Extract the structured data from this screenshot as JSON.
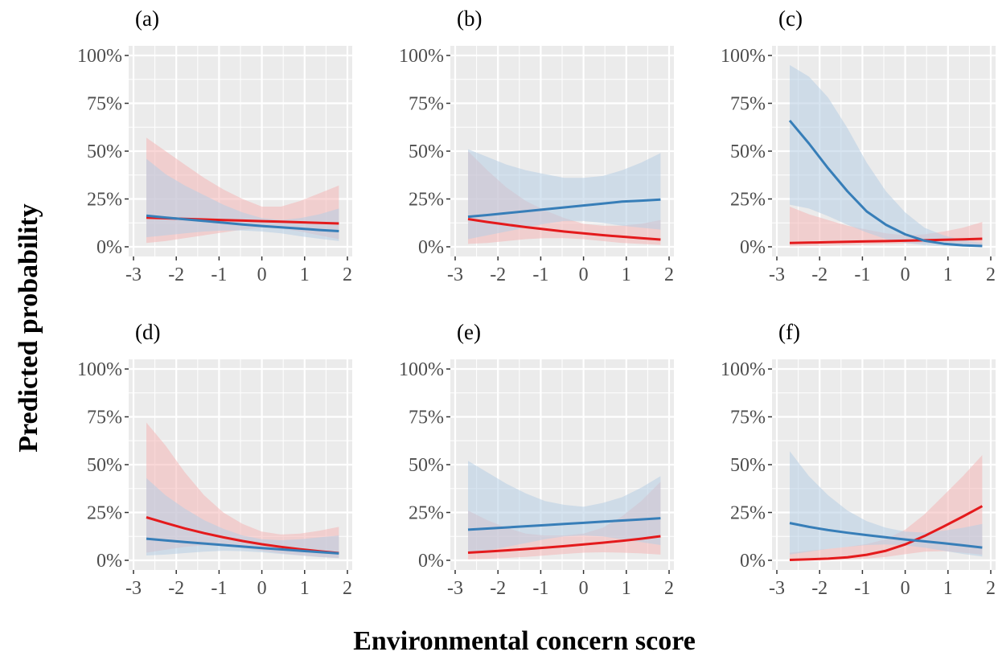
{
  "figure": {
    "ylabel": "Predicted probability",
    "xlabel": "Environmental concern score"
  },
  "colors": {
    "panel_bg": "#ebebeb",
    "grid": "#ffffff",
    "red": "#e41a1c",
    "blue": "#377eb8",
    "red_band": "#f4b6b6",
    "blue_band": "#b7cde3",
    "tick_text": "#4d4d4d"
  },
  "chart_data": [
    {
      "type": "line",
      "tag": "(a)",
      "xlim": [
        -3,
        2
      ],
      "ylim": [
        0,
        100
      ],
      "xticks": [
        "-3",
        "-2",
        "-1",
        "0",
        "1",
        "2"
      ],
      "yticks": [
        "0%",
        "25%",
        "50%",
        "75%",
        "100%"
      ],
      "x": [
        -2.7,
        -2.25,
        -1.8,
        -1.35,
        -0.9,
        -0.45,
        0,
        0.45,
        0.9,
        1.35,
        1.8
      ],
      "series": [
        {
          "color": "red",
          "values": [
            15.2,
            14.9,
            14.6,
            14.3,
            14.0,
            13.7,
            13.4,
            13.1,
            12.8,
            12.5,
            12.2
          ],
          "lower": [
            2.0,
            3.0,
            4.5,
            6.0,
            7.5,
            9.0,
            10.0,
            9.5,
            8.0,
            6.0,
            4.0
          ],
          "upper": [
            57,
            50,
            43,
            36,
            30,
            25,
            21,
            21,
            24,
            28,
            32
          ]
        },
        {
          "color": "blue",
          "values": [
            16.3,
            15.3,
            14.4,
            13.5,
            12.6,
            11.7,
            10.9,
            10.2,
            9.5,
            8.8,
            8.2
          ],
          "lower": [
            5.0,
            6.0,
            7.0,
            8.0,
            8.5,
            8.5,
            8.0,
            7.0,
            5.5,
            4.2,
            3.0
          ],
          "upper": [
            46,
            38,
            32,
            27,
            22,
            18,
            15,
            14,
            15,
            17,
            20
          ]
        }
      ]
    },
    {
      "type": "line",
      "tag": "(b)",
      "xlim": [
        -3,
        2
      ],
      "ylim": [
        0,
        100
      ],
      "xticks": [
        "-3",
        "-2",
        "-1",
        "0",
        "1",
        "2"
      ],
      "yticks": [
        "0%",
        "25%",
        "50%",
        "75%",
        "100%"
      ],
      "x": [
        -2.7,
        -2.25,
        -1.8,
        -1.35,
        -0.9,
        -0.45,
        0,
        0.45,
        0.9,
        1.35,
        1.8
      ],
      "series": [
        {
          "color": "red",
          "values": [
            14.5,
            13.0,
            11.6,
            10.3,
            9.1,
            8.0,
            7.0,
            6.1,
            5.3,
            4.5,
            3.8
          ],
          "lower": [
            1.5,
            2.0,
            3.0,
            4.0,
            4.5,
            4.5,
            4.0,
            3.0,
            2.0,
            1.5,
            1.0
          ],
          "upper": [
            50,
            40,
            31,
            24,
            19,
            15,
            12,
            11,
            11,
            12,
            14
          ]
        },
        {
          "color": "blue",
          "values": [
            15.7,
            16.6,
            17.6,
            18.6,
            19.6,
            20.6,
            21.6,
            22.6,
            23.6,
            24.1,
            24.7
          ],
          "lower": [
            4.0,
            6.0,
            8.0,
            10.0,
            12.0,
            13.5,
            13.5,
            12.5,
            11.0,
            10.0,
            9.0
          ],
          "upper": [
            51,
            47,
            43,
            40,
            38,
            36,
            36,
            37,
            40,
            44,
            49
          ]
        }
      ]
    },
    {
      "type": "line",
      "tag": "(c)",
      "xlim": [
        -3,
        2
      ],
      "ylim": [
        0,
        100
      ],
      "xticks": [
        "-3",
        "-2",
        "-1",
        "0",
        "1",
        "2"
      ],
      "yticks": [
        "0%",
        "25%",
        "50%",
        "75%",
        "100%"
      ],
      "x": [
        -2.7,
        -2.25,
        -1.8,
        -1.35,
        -0.9,
        -0.45,
        0,
        0.45,
        0.9,
        1.35,
        1.8
      ],
      "series": [
        {
          "color": "red",
          "values": [
            2.0,
            2.2,
            2.4,
            2.6,
            2.8,
            3.0,
            3.2,
            3.4,
            3.7,
            3.9,
            4.2
          ],
          "lower": [
            0.2,
            0.4,
            0.6,
            0.9,
            1.2,
            1.5,
            1.8,
            1.8,
            1.6,
            1.3,
            1.0
          ],
          "upper": [
            21,
            17,
            14,
            11,
            9,
            7,
            6,
            6.5,
            8,
            10,
            13
          ]
        },
        {
          "color": "blue",
          "values": [
            66,
            54,
            41,
            29,
            18.5,
            11.5,
            6.5,
            3.2,
            1.6,
            0.8,
            0.4
          ],
          "lower": [
            22,
            20,
            16,
            11.5,
            7.5,
            4.0,
            2.0,
            0.8,
            0.3,
            0.1,
            0.05
          ],
          "upper": [
            95,
            89,
            78,
            62,
            44,
            29,
            18,
            10,
            6,
            3.5,
            2
          ]
        }
      ]
    },
    {
      "type": "line",
      "tag": "(d)",
      "xlim": [
        -3,
        2
      ],
      "ylim": [
        0,
        100
      ],
      "xticks": [
        "-3",
        "-2",
        "-1",
        "0",
        "1",
        "2"
      ],
      "yticks": [
        "0%",
        "25%",
        "50%",
        "75%",
        "100%"
      ],
      "x": [
        -2.7,
        -2.25,
        -1.8,
        -1.35,
        -0.9,
        -0.45,
        0,
        0.45,
        0.9,
        1.35,
        1.8
      ],
      "series": [
        {
          "color": "red",
          "values": [
            22.5,
            19.5,
            16.7,
            14.2,
            12.0,
            10.1,
            8.4,
            7.0,
            5.8,
            4.7,
            3.8
          ],
          "lower": [
            4.0,
            5.5,
            7.0,
            7.8,
            7.5,
            6.5,
            5.0,
            3.7,
            2.6,
            1.8,
            1.2
          ],
          "upper": [
            72,
            60,
            46,
            34,
            25,
            19,
            15,
            13.5,
            14,
            15.5,
            17.5
          ]
        },
        {
          "color": "blue",
          "values": [
            11.3,
            10.4,
            9.6,
            8.8,
            8.0,
            7.2,
            6.4,
            5.7,
            5.0,
            4.3,
            3.6
          ],
          "lower": [
            2.5,
            3.0,
            3.8,
            4.5,
            5.0,
            4.8,
            4.2,
            3.3,
            2.5,
            1.7,
            1.1
          ],
          "upper": [
            43,
            34,
            27,
            21,
            16.5,
            13,
            11,
            10.5,
            11,
            12,
            13
          ]
        }
      ]
    },
    {
      "type": "line",
      "tag": "(e)",
      "xlim": [
        -3,
        2
      ],
      "ylim": [
        0,
        100
      ],
      "xticks": [
        "-3",
        "-2",
        "-1",
        "0",
        "1",
        "2"
      ],
      "yticks": [
        "0%",
        "25%",
        "50%",
        "75%",
        "100%"
      ],
      "x": [
        -2.7,
        -2.25,
        -1.8,
        -1.35,
        -0.9,
        -0.45,
        0,
        0.45,
        0.9,
        1.35,
        1.8
      ],
      "series": [
        {
          "color": "red",
          "values": [
            4.0,
            4.6,
            5.2,
            5.9,
            6.6,
            7.4,
            8.3,
            9.2,
            10.2,
            11.3,
            12.6
          ],
          "lower": [
            0.5,
            0.8,
            1.2,
            1.8,
            2.5,
            3.3,
            4.0,
            4.2,
            4.0,
            3.6,
            3.0
          ],
          "upper": [
            26,
            21,
            17,
            14,
            13,
            13,
            14,
            17,
            23,
            31,
            41
          ]
        },
        {
          "color": "blue",
          "values": [
            16.0,
            16.6,
            17.2,
            17.8,
            18.4,
            19.0,
            19.6,
            20.2,
            20.8,
            21.4,
            22.0
          ],
          "lower": [
            3.5,
            5.0,
            7.0,
            9.0,
            11.0,
            12.5,
            13.0,
            12.5,
            11.0,
            9.5,
            8.0
          ],
          "upper": [
            52,
            46,
            40,
            35,
            31,
            29,
            28,
            30,
            33,
            38,
            44
          ]
        }
      ]
    },
    {
      "type": "line",
      "tag": "(f)",
      "xlim": [
        -3,
        2
      ],
      "ylim": [
        0,
        100
      ],
      "xticks": [
        "-3",
        "-2",
        "-1",
        "0",
        "1",
        "2"
      ],
      "yticks": [
        "0%",
        "25%",
        "50%",
        "75%",
        "100%"
      ],
      "x": [
        -2.7,
        -2.25,
        -1.8,
        -1.35,
        -0.9,
        -0.45,
        0,
        0.45,
        0.9,
        1.35,
        1.8
      ],
      "series": [
        {
          "color": "red",
          "values": [
            0.2,
            0.5,
            0.9,
            1.6,
            2.9,
            5.0,
            8.3,
            12.7,
            17.7,
            22.9,
            28.3
          ],
          "lower": [
            0.0,
            0.1,
            0.2,
            0.4,
            0.9,
            1.8,
            3.2,
            4.5,
            4.8,
            4.0,
            3.0
          ],
          "upper": [
            4,
            5,
            6,
            7,
            8.5,
            11,
            16,
            24,
            34,
            44,
            55
          ]
        },
        {
          "color": "blue",
          "values": [
            19.5,
            17.5,
            15.8,
            14.4,
            13.2,
            12.0,
            10.9,
            9.9,
            8.9,
            7.8,
            6.7
          ],
          "lower": [
            3.0,
            4.5,
            6.0,
            7.0,
            8.0,
            8.3,
            7.8,
            6.6,
            5.0,
            3.3,
            2.0
          ],
          "upper": [
            57,
            44,
            34,
            26,
            20.5,
            17,
            15,
            14.5,
            15.5,
            17,
            19
          ]
        }
      ]
    }
  ]
}
